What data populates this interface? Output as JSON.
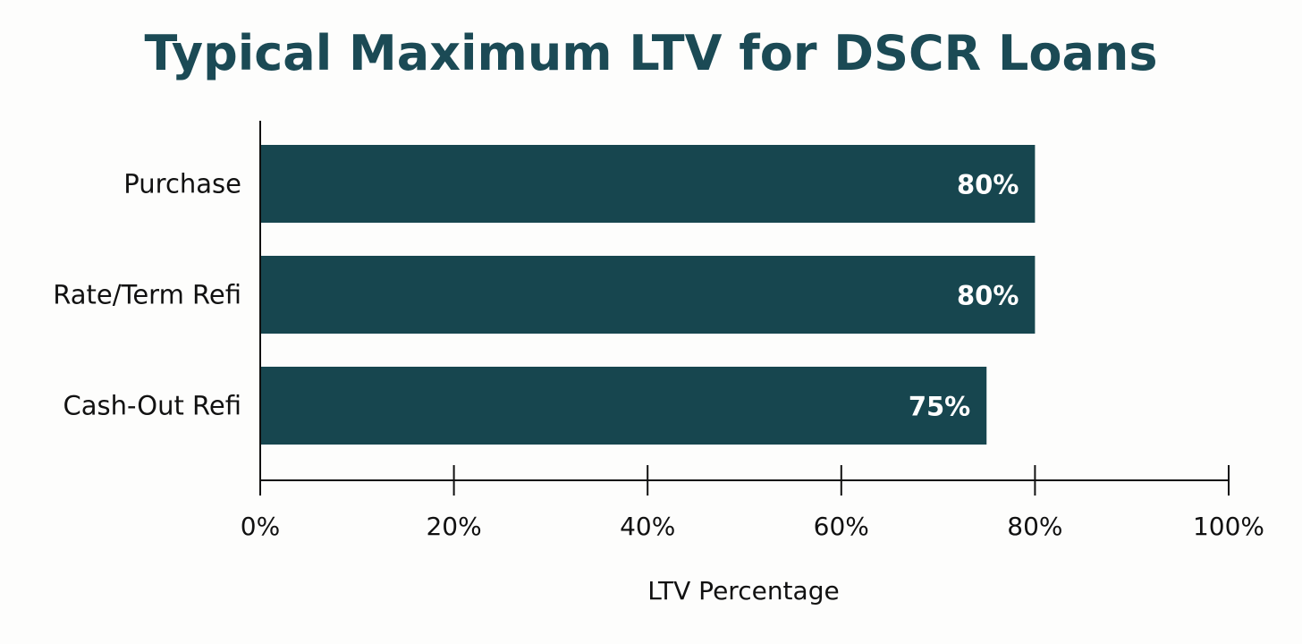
{
  "chart_data": {
    "type": "bar",
    "orientation": "horizontal",
    "title": "Typical Maximum LTV for DSCR Loans",
    "xlabel": "LTV Percentage",
    "ylabel": "",
    "categories": [
      "Purchase",
      "Rate/Term Refi",
      "Cash-Out Refi"
    ],
    "values": [
      80,
      80,
      75
    ],
    "data_labels": [
      "80%",
      "80%",
      "75%"
    ],
    "xlim": [
      0,
      100
    ],
    "xticks": [
      0,
      20,
      40,
      60,
      80,
      100
    ],
    "xtick_labels": [
      "0%",
      "20%",
      "40%",
      "60%",
      "80%",
      "100%"
    ],
    "grid": false,
    "colors": {
      "bar": "#17464f",
      "title": "#1b4a55",
      "label_text": "#ffffff"
    }
  }
}
